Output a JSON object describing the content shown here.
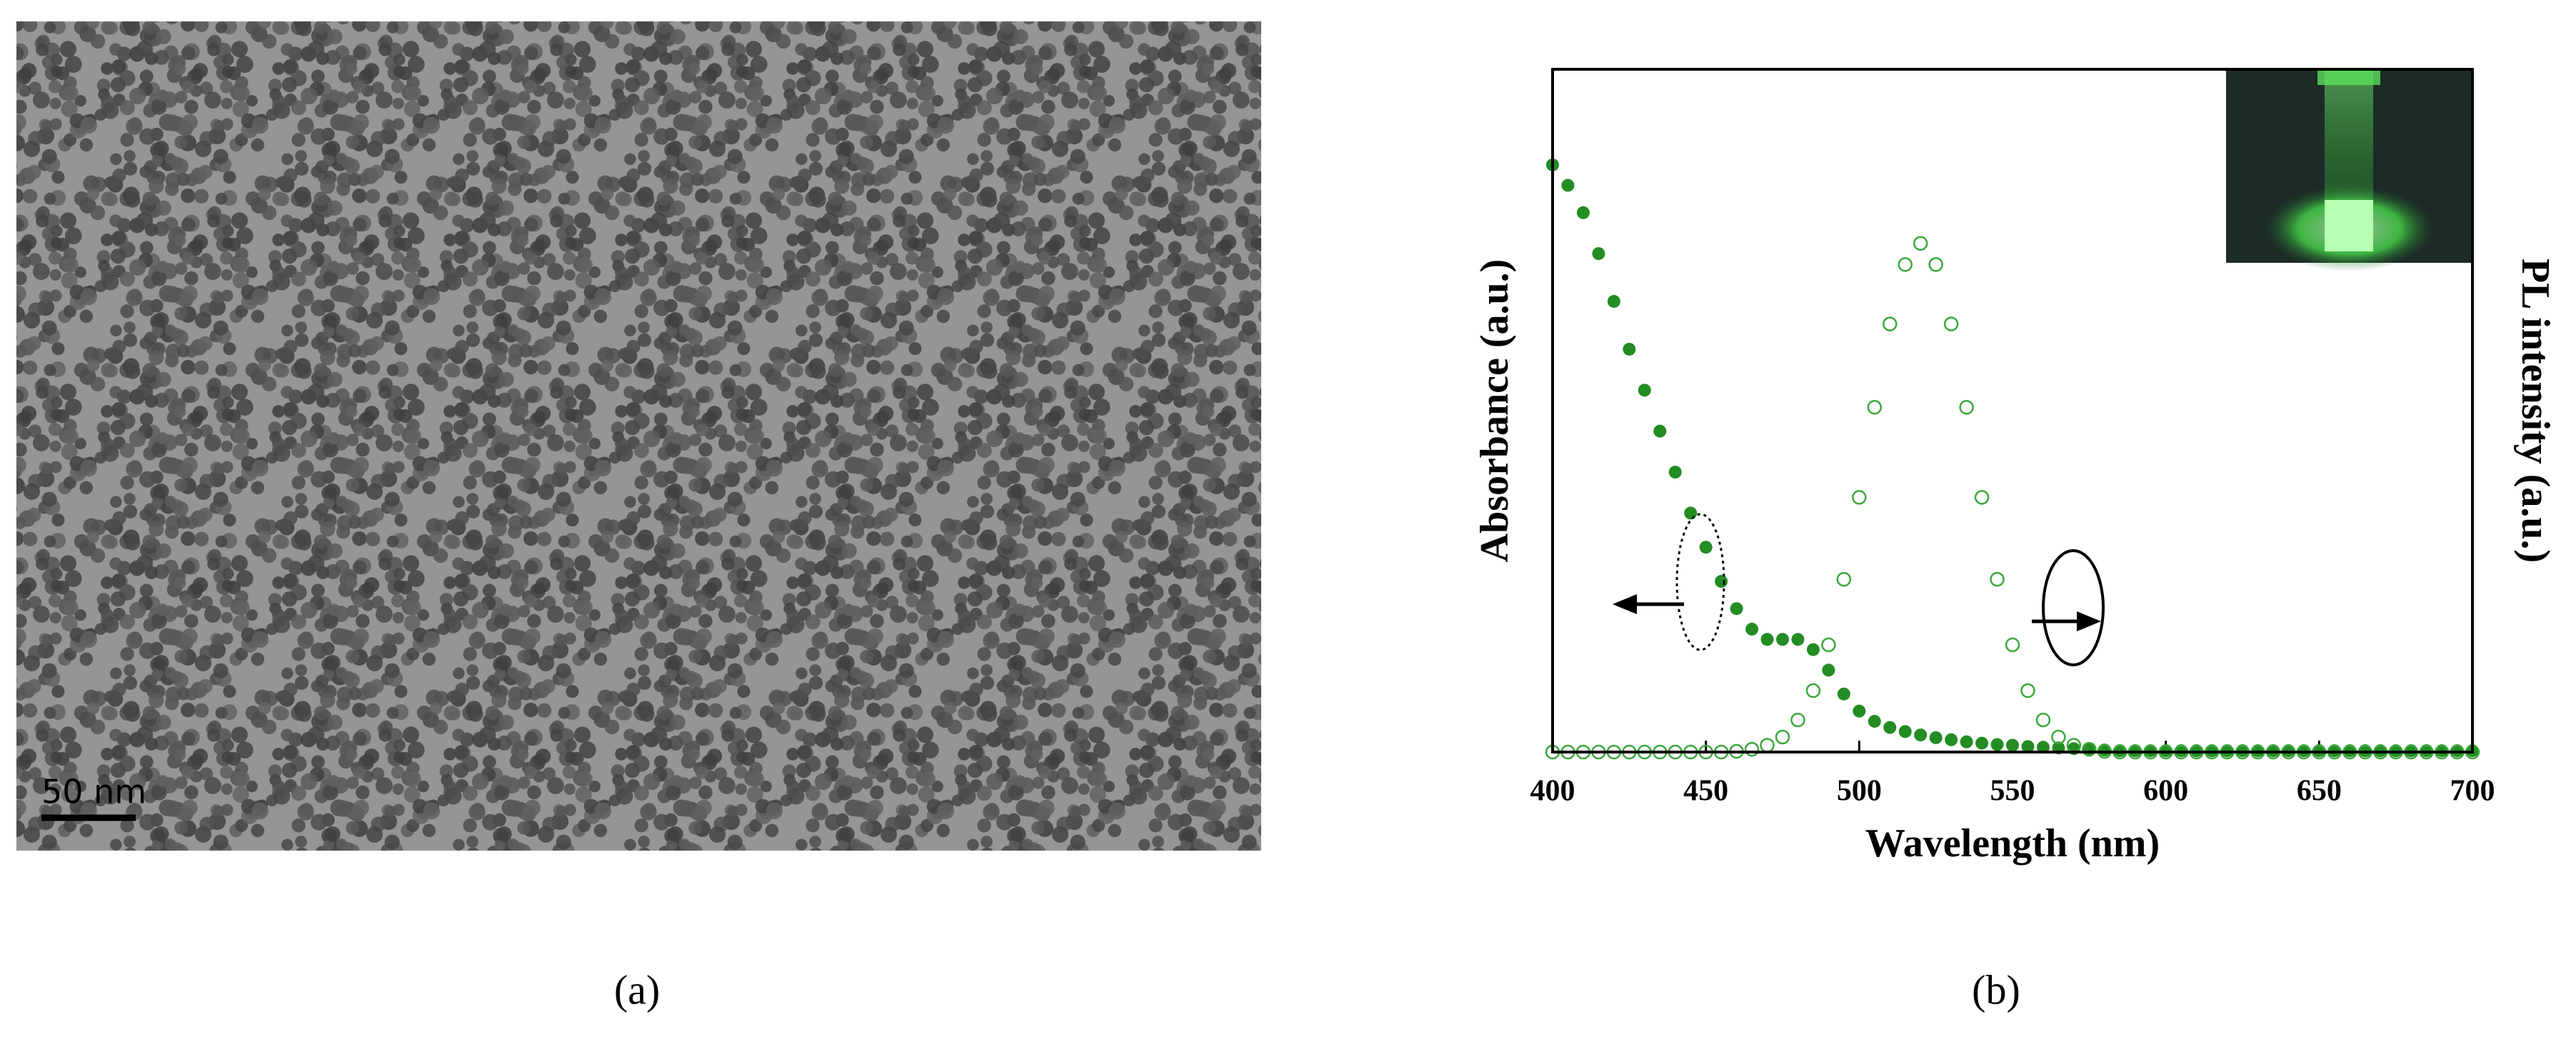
{
  "image_panel": {
    "scale_bar": "50 nm",
    "panel_label": "(a)"
  },
  "chart_data": {
    "type": "line",
    "panel_label": "(b)",
    "x_label": "Wavelength (nm)",
    "y_label": "Absorbance (a.u.)",
    "y2_label": "PL intensity (a.u.)",
    "x": [
      400,
      405,
      410,
      415,
      420,
      425,
      430,
      435,
      440,
      445,
      450,
      455,
      460,
      465,
      470,
      475,
      480,
      485,
      490,
      495,
      500,
      505,
      510,
      515,
      520,
      525,
      530,
      535,
      540,
      545,
      550,
      555,
      560,
      565,
      570,
      575,
      580,
      585,
      590,
      595,
      600,
      605,
      610,
      615,
      620,
      625,
      630,
      635,
      640,
      645,
      650,
      655,
      660,
      665,
      670,
      675,
      680,
      685,
      690,
      695,
      700
    ],
    "xlim": [
      400,
      700
    ],
    "xticks": [
      400,
      450,
      500,
      550,
      600,
      650,
      700
    ],
    "ylim": [
      0,
      1
    ],
    "y2lim": [
      0,
      1
    ],
    "series": [
      {
        "name": "Absorbance",
        "color": "#238c23",
        "marker": "filled",
        "axis": "y",
        "values": [
          0.86,
          0.83,
          0.79,
          0.73,
          0.66,
          0.59,
          0.53,
          0.47,
          0.41,
          0.35,
          0.3,
          0.25,
          0.21,
          0.18,
          0.165,
          0.165,
          0.165,
          0.15,
          0.12,
          0.085,
          0.06,
          0.045,
          0.036,
          0.03,
          0.025,
          0.021,
          0.018,
          0.015,
          0.013,
          0.011,
          0.01,
          0.008,
          0.007,
          0.006,
          0.005,
          0.004,
          0.003,
          0.002,
          0.002,
          0.002,
          0.002,
          0.002,
          0.002,
          0.002,
          0.002,
          0.002,
          0.002,
          0.002,
          0.002,
          0.002,
          0.002,
          0.002,
          0.002,
          0.002,
          0.002,
          0.002,
          0.002,
          0.002,
          0.002,
          0.002,
          0.002
        ]
      },
      {
        "name": "PL intensity",
        "color": "#3aa83a",
        "marker": "open",
        "axis": "y2",
        "values": [
          0,
          0,
          0,
          0,
          0,
          0,
          0,
          0,
          0,
          0,
          0,
          0,
          0.001,
          0.004,
          0.01,
          0.022,
          0.047,
          0.09,
          0.157,
          0.253,
          0.373,
          0.505,
          0.627,
          0.714,
          0.745,
          0.714,
          0.627,
          0.505,
          0.373,
          0.253,
          0.157,
          0.09,
          0.047,
          0.022,
          0.01,
          0.004,
          0.001,
          0,
          0,
          0,
          0,
          0,
          0,
          0,
          0,
          0,
          0,
          0,
          0,
          0,
          0,
          0,
          0,
          0,
          0,
          0,
          0,
          0,
          0,
          0,
          0
        ]
      }
    ]
  }
}
